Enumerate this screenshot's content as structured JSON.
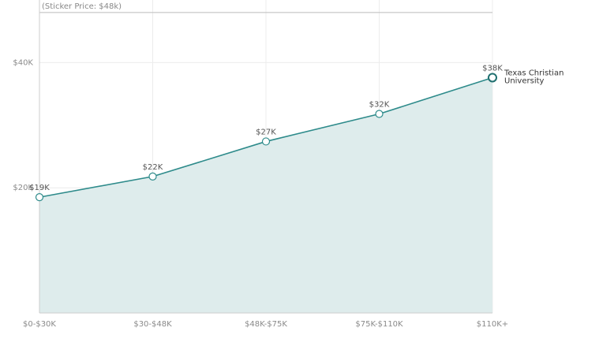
{
  "chart_data": {
    "type": "area",
    "categories": [
      "$0-$30K",
      "$30-$48K",
      "$48K-$75K",
      "$75K-$110K",
      "$110K+"
    ],
    "series": [
      {
        "name": "Texas Christian University",
        "values": [
          18500,
          21800,
          27400,
          31800,
          37600
        ],
        "labels": [
          "$19K",
          "$22K",
          "$27K",
          "$32K",
          "$38K"
        ]
      }
    ],
    "ylim": [
      0,
      50000
    ],
    "yticks": [
      20000,
      40000
    ],
    "ytick_labels": [
      "$20K",
      "$40K"
    ],
    "reference_line": {
      "value": 48000,
      "label": "(Sticker Price: $48k)"
    },
    "grid": true,
    "colors": {
      "line": "#2e8b8b",
      "fill": "#deecec",
      "marker_last": "#1f6f6f",
      "grid": "#ececec",
      "axis": "#cccccc"
    }
  }
}
